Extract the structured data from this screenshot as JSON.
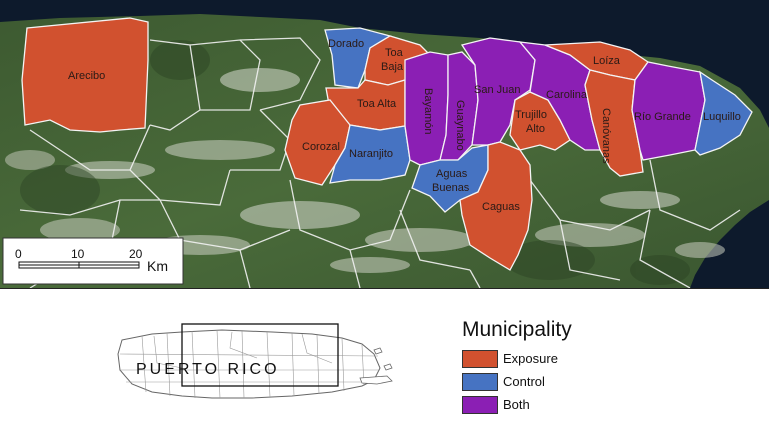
{
  "map": {
    "municipalities": [
      {
        "name": "Arecibo",
        "category": "exposure"
      },
      {
        "name": "Dorado",
        "category": "control"
      },
      {
        "name": "Toa Baja",
        "category": "exposure"
      },
      {
        "name": "Toa Alta",
        "category": "exposure"
      },
      {
        "name": "Corozal",
        "category": "exposure"
      },
      {
        "name": "Naranjito",
        "category": "control"
      },
      {
        "name": "Bayamón",
        "category": "both"
      },
      {
        "name": "Guaynabo",
        "category": "both"
      },
      {
        "name": "San Juan",
        "category": "both"
      },
      {
        "name": "Trujillo Alto",
        "category": "exposure"
      },
      {
        "name": "Aguas Buenas",
        "category": "control"
      },
      {
        "name": "Caguas",
        "category": "exposure"
      },
      {
        "name": "Carolina",
        "category": "both"
      },
      {
        "name": "Loíza",
        "category": "exposure"
      },
      {
        "name": "Canóvanas",
        "category": "exposure"
      },
      {
        "name": "Río Grande",
        "category": "both"
      },
      {
        "name": "Luquillo",
        "category": "control"
      }
    ],
    "scale_bar": {
      "ticks": [
        "0",
        "10",
        "20"
      ],
      "unit": "Km"
    }
  },
  "inset": {
    "label": "PUERTO RICO"
  },
  "legend": {
    "title": "Municipality",
    "items": [
      {
        "label": "Exposure",
        "color": "#d1512f"
      },
      {
        "label": "Control",
        "color": "#4673c2"
      },
      {
        "label": "Both",
        "color": "#8b1fb4"
      }
    ]
  },
  "colors": {
    "exposure": "#d1512f",
    "control": "#4673c2",
    "both": "#8b1fb4",
    "ocean": "#0d1a2c",
    "land": "#3f5e33"
  }
}
